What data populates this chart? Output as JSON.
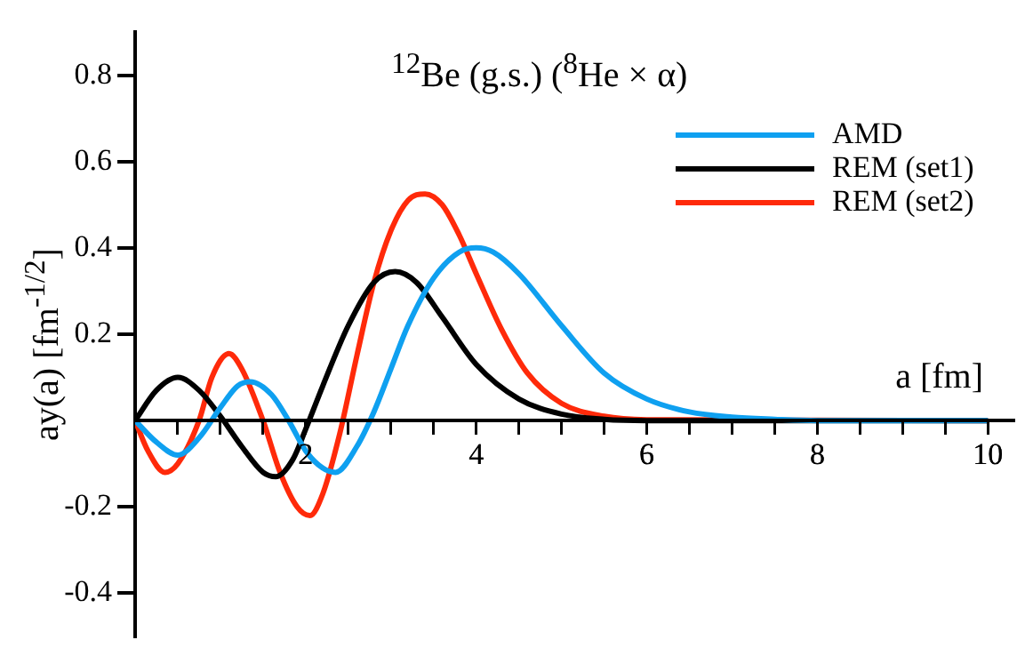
{
  "chart_data": {
    "type": "line",
    "title": "$^{12}$Be (g.s.) ($^{8}$He × α)",
    "xlabel": "a [fm]",
    "ylabel": "ay(a) [fm$^{-1/2}$]",
    "xlim": [
      0,
      10.3
    ],
    "ylim": [
      -0.5,
      0.9
    ],
    "xticks": [
      {
        "value": 0.5,
        "label": null
      },
      {
        "value": 1,
        "label": null
      },
      {
        "value": 1.5,
        "label": null
      },
      2,
      {
        "value": 2.5,
        "label": null
      },
      {
        "value": 3,
        "label": null
      },
      {
        "value": 3.5,
        "label": null
      },
      4,
      {
        "value": 4.5,
        "label": null
      },
      {
        "value": 5,
        "label": null
      },
      {
        "value": 5.5,
        "label": null
      },
      6,
      {
        "value": 6.5,
        "label": null
      },
      {
        "value": 7,
        "label": null
      },
      {
        "value": 7.5,
        "label": null
      },
      8,
      {
        "value": 8.5,
        "label": null
      },
      {
        "value": 9,
        "label": null
      },
      {
        "value": 9.5,
        "label": null
      },
      10
    ],
    "yticks": [
      -0.4,
      -0.2,
      0.2,
      0.4,
      0.6,
      0.8
    ],
    "grid": false,
    "legend": "top right",
    "marker": "none",
    "line_style": "solid",
    "series": [
      {
        "name": "AMD",
        "color": "#0fa0f0",
        "x": [
          0,
          0.25,
          0.5,
          0.75,
          1.0,
          1.2,
          1.35,
          1.6,
          1.8,
          2.0,
          2.2,
          2.35,
          2.6,
          2.8,
          3.0,
          3.2,
          3.5,
          3.8,
          4.0,
          4.2,
          4.5,
          5.0,
          5.5,
          6.0,
          6.5,
          7.0,
          7.5,
          8.0,
          10.0
        ],
        "values": [
          0,
          -0.05,
          -0.08,
          -0.04,
          0.03,
          0.08,
          0.09,
          0.06,
          0.0,
          -0.07,
          -0.11,
          -0.12,
          -0.06,
          0.02,
          0.12,
          0.22,
          0.33,
          0.39,
          0.4,
          0.39,
          0.34,
          0.22,
          0.11,
          0.05,
          0.02,
          0.008,
          0.003,
          0,
          0
        ]
      },
      {
        "name": "REM (set1)",
        "color": "#000000",
        "x": [
          0,
          0.25,
          0.5,
          0.75,
          1.0,
          1.25,
          1.5,
          1.65,
          1.85,
          2.0,
          2.2,
          2.5,
          2.8,
          3.05,
          3.3,
          3.6,
          4.0,
          4.5,
          5.0,
          5.5,
          6.0,
          10.0
        ],
        "values": [
          0,
          0.07,
          0.1,
          0.07,
          0.01,
          -0.06,
          -0.12,
          -0.13,
          -0.09,
          -0.02,
          0.08,
          0.22,
          0.32,
          0.345,
          0.32,
          0.24,
          0.13,
          0.05,
          0.015,
          0.003,
          0,
          0
        ]
      },
      {
        "name": "REM (set2)",
        "color": "#ff2a0a",
        "x": [
          0,
          0.15,
          0.35,
          0.5,
          0.75,
          0.9,
          1.1,
          1.25,
          1.5,
          1.7,
          1.9,
          2.05,
          2.2,
          2.4,
          2.6,
          2.8,
          3.0,
          3.2,
          3.4,
          3.6,
          3.8,
          4.0,
          4.3,
          4.6,
          5.0,
          5.5,
          6.0,
          10.0
        ],
        "values": [
          0,
          -0.07,
          -0.12,
          -0.1,
          0.0,
          0.1,
          0.155,
          0.12,
          0.0,
          -0.12,
          -0.2,
          -0.22,
          -0.17,
          -0.03,
          0.15,
          0.32,
          0.44,
          0.51,
          0.525,
          0.5,
          0.43,
          0.34,
          0.21,
          0.11,
          0.04,
          0.01,
          0.002,
          0
        ]
      }
    ]
  }
}
